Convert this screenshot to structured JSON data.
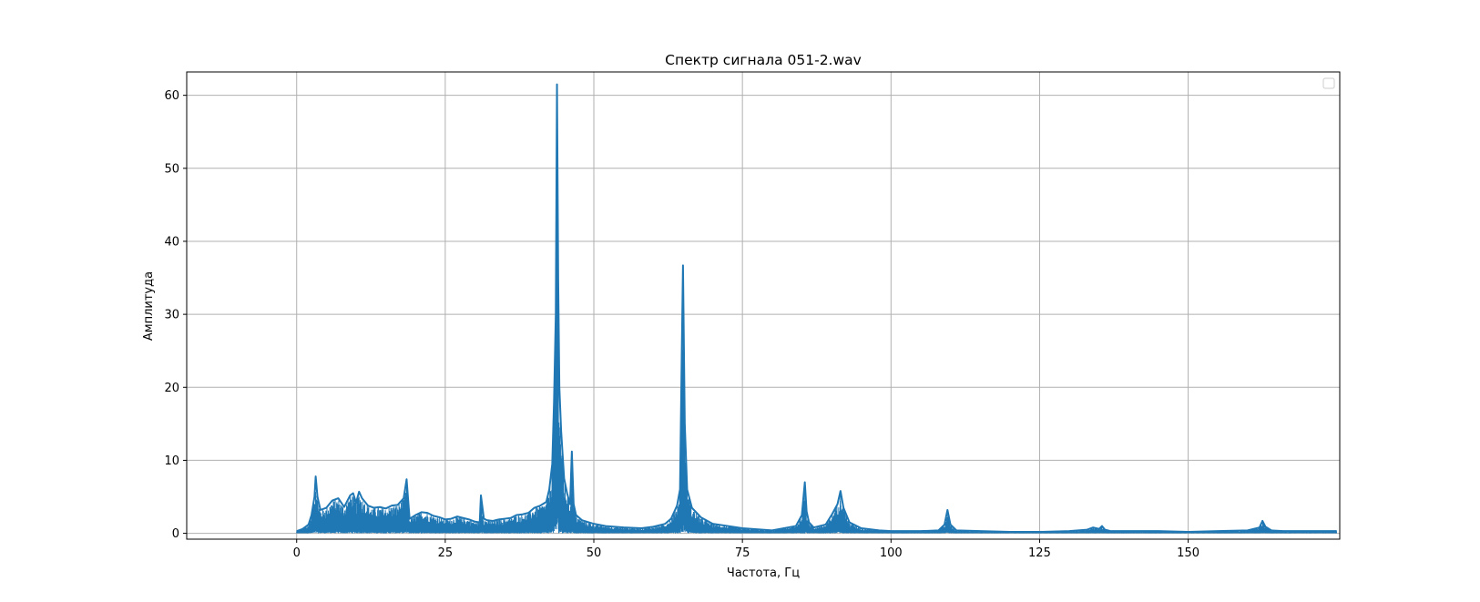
{
  "chart_data": {
    "type": "line",
    "title": "Спектр сигнала 051-2.wav",
    "xlabel": "Частота, Гц",
    "ylabel": "Амплитуда",
    "xlim": [
      -18.5,
      175.5
    ],
    "ylim": [
      -0.8,
      63.2
    ],
    "xticks": [
      0,
      25,
      50,
      75,
      100,
      125,
      150
    ],
    "yticks": [
      0,
      10,
      20,
      30,
      40,
      50,
      60
    ],
    "grid": true,
    "legend": "top-right",
    "line_color": "#1f77b4",
    "series": [
      {
        "x": [
          0,
          1,
          2,
          2.5,
          3,
          3.2,
          3.5,
          4,
          5,
          6,
          7,
          8,
          9,
          9.5,
          10,
          10.5,
          11,
          12,
          13,
          14,
          15,
          16,
          17,
          18,
          18.5,
          19,
          20,
          21,
          22,
          23,
          24,
          25,
          26,
          27,
          28,
          29,
          30,
          30.8,
          31,
          31.5,
          32,
          33,
          34,
          35,
          36,
          37,
          38,
          39,
          40,
          41,
          42,
          42.5,
          43,
          43.3,
          43.6,
          43.8,
          44,
          44.2,
          44.5,
          45,
          45.5,
          46,
          46.3,
          46.6,
          47,
          48,
          50,
          52,
          55,
          58,
          60,
          62,
          63,
          64,
          64.5,
          64.8,
          65,
          65.3,
          65.7,
          66.5,
          68,
          70,
          75,
          80,
          84,
          85,
          85.5,
          85.8,
          86.2,
          87,
          89,
          90,
          91,
          91.5,
          92,
          93,
          95,
          98,
          100,
          105,
          108,
          109,
          109.5,
          110,
          111,
          115,
          120,
          125,
          130,
          133,
          134,
          135,
          135.5,
          136,
          137,
          140,
          145,
          150,
          155,
          160,
          162,
          162.5,
          163,
          164,
          166,
          170,
          175
        ],
        "y": [
          0.3,
          0.6,
          1.2,
          2.5,
          5,
          7.8,
          5,
          3.2,
          3.5,
          4.5,
          4.8,
          3.6,
          5.2,
          5.5,
          4.2,
          5.7,
          4.8,
          3.8,
          3.5,
          3.6,
          3.4,
          3.8,
          3.9,
          4.8,
          7.4,
          2,
          2.5,
          2.9,
          2.8,
          2.4,
          2.2,
          1.9,
          2,
          2.3,
          2.1,
          1.9,
          1.6,
          1.5,
          5.2,
          2,
          1.8,
          1.7,
          1.9,
          2,
          2.1,
          2.5,
          2.6,
          2.8,
          3.5,
          3.8,
          4.3,
          6,
          9.5,
          18,
          30,
          61.5,
          35,
          20,
          14,
          7.5,
          5.5,
          4,
          11.2,
          4,
          2.5,
          1.8,
          1.3,
          1,
          0.8,
          0.7,
          0.9,
          1.3,
          2,
          3.8,
          6,
          25,
          36.7,
          15,
          6,
          3.5,
          2.2,
          1.3,
          0.7,
          0.4,
          1,
          2.5,
          7,
          3,
          1.5,
          0.8,
          1.2,
          2.5,
          4,
          5.8,
          3.5,
          1.5,
          0.7,
          0.4,
          0.3,
          0.3,
          0.4,
          1.2,
          3.2,
          1.2,
          0.4,
          0.3,
          0.2,
          0.2,
          0.3,
          0.5,
          0.8,
          0.6,
          1,
          0.5,
          0.3,
          0.3,
          0.3,
          0.2,
          0.3,
          0.4,
          0.8,
          1.7,
          0.9,
          0.4,
          0.3,
          0.3,
          0.3
        ]
      }
    ]
  }
}
